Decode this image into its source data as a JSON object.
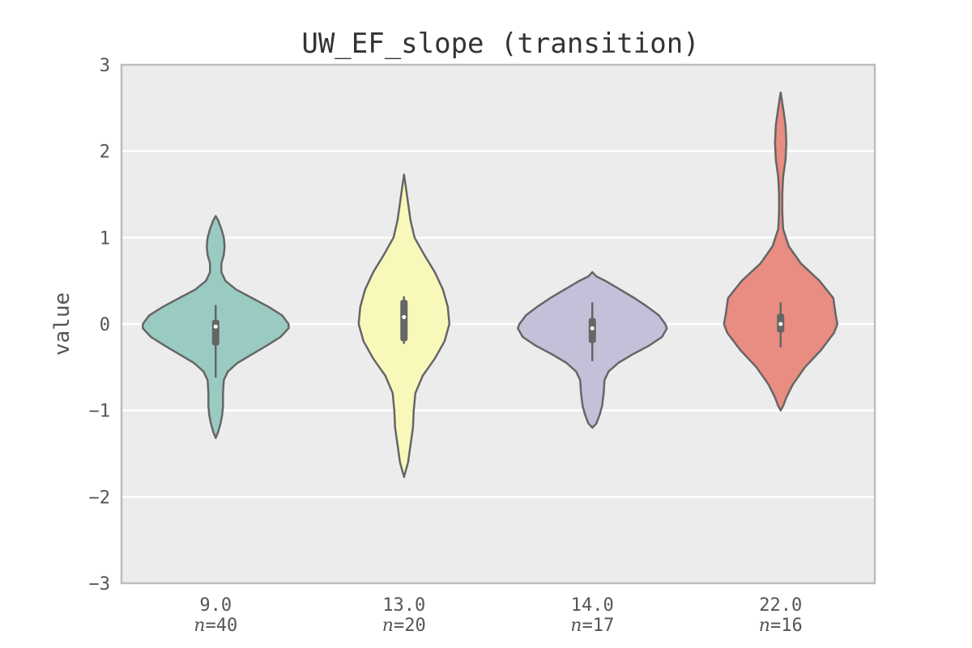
{
  "chart_data": {
    "type": "violin",
    "title": "UW_EF_slope (transition)",
    "xlabel": "",
    "ylabel": "value",
    "ylim": [
      -3,
      3
    ],
    "yticks": [
      -3,
      -2,
      -1,
      0,
      1,
      2,
      3
    ],
    "ytick_labels": [
      "−3",
      "−2",
      "−1",
      "0",
      "1",
      "2",
      "3"
    ],
    "grid": true,
    "legend": "none",
    "background": "#ececec",
    "categories": [
      {
        "label": "9.0",
        "n_label": "n=40",
        "n": 40,
        "color": "#99cbc2",
        "profile": [
          [
            1.25,
            0
          ],
          [
            1.2,
            3
          ],
          [
            1.1,
            7
          ],
          [
            1.0,
            10
          ],
          [
            0.9,
            11
          ],
          [
            0.8,
            10
          ],
          [
            0.7,
            7
          ],
          [
            0.6,
            7
          ],
          [
            0.5,
            12
          ],
          [
            0.4,
            25
          ],
          [
            0.3,
            45
          ],
          [
            0.2,
            65
          ],
          [
            0.1,
            82
          ],
          [
            0.0,
            90
          ],
          [
            -0.05,
            90
          ],
          [
            -0.15,
            80
          ],
          [
            -0.25,
            63
          ],
          [
            -0.35,
            45
          ],
          [
            -0.45,
            27
          ],
          [
            -0.55,
            15
          ],
          [
            -0.65,
            10
          ],
          [
            -0.8,
            9
          ],
          [
            -0.95,
            9
          ],
          [
            -1.05,
            8
          ],
          [
            -1.15,
            6
          ],
          [
            -1.25,
            3
          ],
          [
            -1.32,
            0
          ]
        ],
        "whisker": [
          -0.62,
          0.22
        ],
        "box": [
          -0.25,
          0.05
        ],
        "median": -0.03
      },
      {
        "label": "13.0",
        "n_label": "n=20",
        "n": 20,
        "color": "#f8f8bb",
        "profile": [
          [
            1.73,
            0
          ],
          [
            1.6,
            2
          ],
          [
            1.4,
            5
          ],
          [
            1.2,
            8
          ],
          [
            1.0,
            13
          ],
          [
            0.8,
            25
          ],
          [
            0.6,
            38
          ],
          [
            0.4,
            48
          ],
          [
            0.2,
            54
          ],
          [
            0.0,
            56
          ],
          [
            -0.2,
            50
          ],
          [
            -0.4,
            38
          ],
          [
            -0.6,
            23
          ],
          [
            -0.8,
            14
          ],
          [
            -1.0,
            12
          ],
          [
            -1.2,
            11
          ],
          [
            -1.4,
            8
          ],
          [
            -1.6,
            5
          ],
          [
            -1.77,
            0
          ]
        ],
        "whisker": [
          -0.23,
          0.32
        ],
        "box": [
          -0.2,
          0.28
        ],
        "median": 0.08
      },
      {
        "label": "14.0",
        "n_label": "n=17",
        "n": 17,
        "color": "#c3c0da",
        "profile": [
          [
            0.6,
            0
          ],
          [
            0.55,
            5
          ],
          [
            0.5,
            16
          ],
          [
            0.4,
            34
          ],
          [
            0.3,
            52
          ],
          [
            0.2,
            68
          ],
          [
            0.1,
            82
          ],
          [
            0.0,
            90
          ],
          [
            -0.05,
            92
          ],
          [
            -0.15,
            86
          ],
          [
            -0.25,
            70
          ],
          [
            -0.35,
            50
          ],
          [
            -0.45,
            32
          ],
          [
            -0.55,
            20
          ],
          [
            -0.65,
            15
          ],
          [
            -0.8,
            14
          ],
          [
            -0.95,
            12
          ],
          [
            -1.05,
            9
          ],
          [
            -1.15,
            5
          ],
          [
            -1.2,
            0
          ]
        ],
        "whisker": [
          -0.43,
          0.25
        ],
        "box": [
          -0.22,
          0.07
        ],
        "median": -0.05
      },
      {
        "label": "22.0",
        "n_label": "n=16",
        "n": 16,
        "color": "#e98c82",
        "profile": [
          [
            2.68,
            0
          ],
          [
            2.5,
            3
          ],
          [
            2.3,
            6
          ],
          [
            2.1,
            7
          ],
          [
            1.9,
            6
          ],
          [
            1.7,
            3
          ],
          [
            1.5,
            2
          ],
          [
            1.3,
            2
          ],
          [
            1.1,
            3
          ],
          [
            0.9,
            10
          ],
          [
            0.7,
            25
          ],
          [
            0.5,
            48
          ],
          [
            0.3,
            65
          ],
          [
            0.1,
            68
          ],
          [
            0.0,
            70
          ],
          [
            -0.1,
            66
          ],
          [
            -0.3,
            50
          ],
          [
            -0.5,
            30
          ],
          [
            -0.7,
            15
          ],
          [
            -0.85,
            7
          ],
          [
            -0.95,
            3
          ],
          [
            -1.0,
            0
          ]
        ],
        "whisker": [
          -0.27,
          0.25
        ],
        "box": [
          -0.1,
          0.12
        ],
        "median": 0.0
      }
    ]
  }
}
